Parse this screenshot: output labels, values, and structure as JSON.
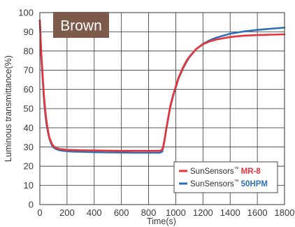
{
  "chart_data": {
    "type": "line",
    "title": "",
    "xlabel": "Time(s)",
    "ylabel": "Luminous transmittance(%)",
    "xlim": [
      0,
      1800
    ],
    "ylim": [
      0,
      100
    ],
    "x_ticks": [
      "0",
      "200",
      "400",
      "600",
      "800",
      "1000",
      "1200",
      "1400",
      "1600",
      "1800"
    ],
    "y_ticks": [
      "0",
      "10",
      "20",
      "30",
      "40",
      "50",
      "60",
      "70",
      "80",
      "90",
      "100"
    ],
    "grid": true,
    "badge": "Brown",
    "badge_color": "#7d5a4a",
    "legend_position": "bottom-right",
    "series": [
      {
        "name": "MR-8",
        "brand": "SunSensors",
        "tm": "™",
        "color": "#e8333a",
        "x": [
          0,
          10,
          20,
          30,
          40,
          50,
          60,
          70,
          80,
          90,
          100,
          120,
          140,
          160,
          200,
          250,
          300,
          400,
          500,
          600,
          700,
          800,
          880,
          900,
          910,
          920,
          930,
          940,
          950,
          960,
          980,
          1000,
          1020,
          1050,
          1080,
          1100,
          1150,
          1200,
          1250,
          1300,
          1400,
          1500,
          1600,
          1700,
          1800
        ],
        "y": [
          96,
          80,
          68,
          57,
          49,
          43,
          38.5,
          35,
          33,
          31.5,
          30.5,
          29.5,
          29,
          28.8,
          28.5,
          28.4,
          28.3,
          28.2,
          28.1,
          28,
          28,
          28,
          28,
          28.5,
          31,
          35,
          39.5,
          43.5,
          47.5,
          51.5,
          57,
          61.5,
          66,
          71,
          75,
          77,
          81,
          83.5,
          85,
          86,
          87.3,
          88,
          88.3,
          88.5,
          88.7
        ]
      },
      {
        "name": "50HPM",
        "brand": "SunSensors",
        "tm": "™",
        "color": "#2f6fb7",
        "x": [
          0,
          10,
          20,
          30,
          40,
          50,
          60,
          70,
          80,
          90,
          100,
          120,
          140,
          160,
          200,
          250,
          300,
          400,
          500,
          600,
          700,
          800,
          880,
          900,
          910,
          920,
          930,
          940,
          950,
          960,
          980,
          1000,
          1020,
          1050,
          1080,
          1100,
          1150,
          1200,
          1250,
          1300,
          1400,
          1500,
          1600,
          1700,
          1800
        ],
        "y": [
          96,
          78,
          66,
          55,
          47,
          41.5,
          37.5,
          34.5,
          32.3,
          30.8,
          29.8,
          28.9,
          28.4,
          28.1,
          27.8,
          27.6,
          27.5,
          27.3,
          27.2,
          27.1,
          27,
          27,
          27,
          27.5,
          30.5,
          34.5,
          39,
          43,
          47,
          51,
          56.5,
          61,
          65.5,
          70.5,
          74.5,
          76.8,
          81,
          83.7,
          85.6,
          87,
          89,
          90.2,
          91,
          91.6,
          92.2
        ]
      }
    ]
  }
}
